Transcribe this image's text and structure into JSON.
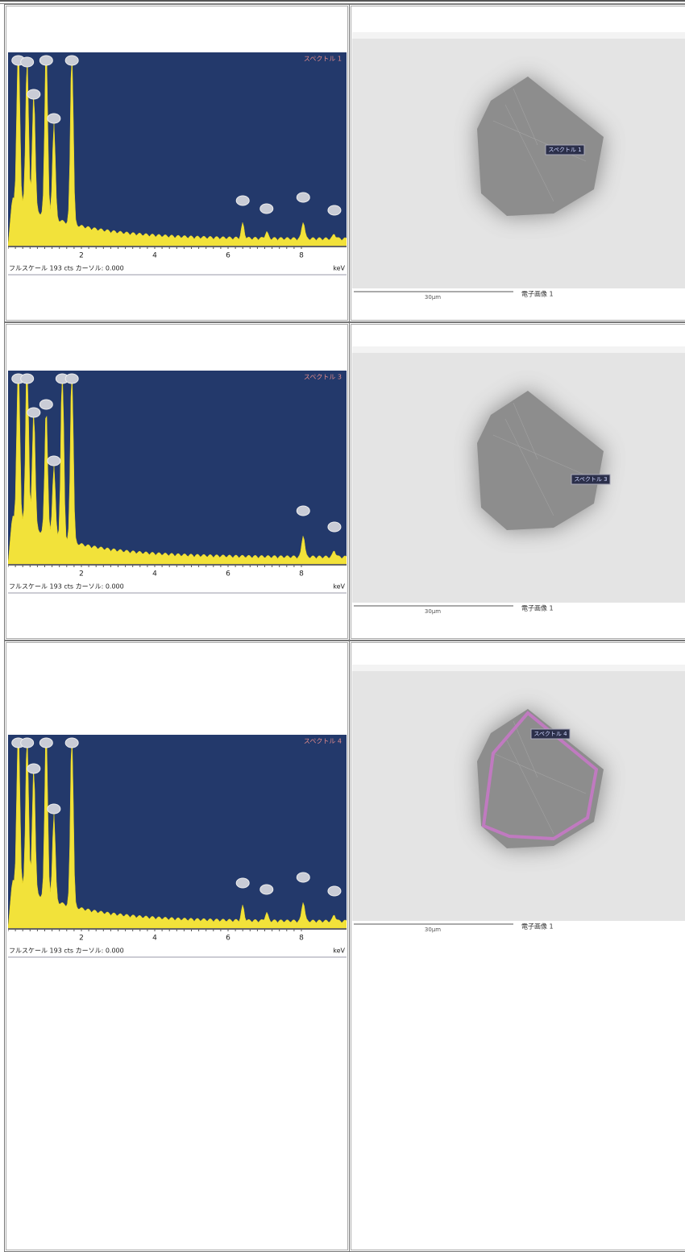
{
  "rows": [
    {
      "spectrum": {
        "title": "スペクトル 1",
        "ticks": [
          "2",
          "4",
          "6",
          "8"
        ],
        "footer": "フルスケール 193 cts カーソル: 0.000",
        "unit": "keV"
      },
      "image": {
        "marker": "スペクトル 1",
        "scale": "30μm",
        "caption": "電子画像 1"
      }
    },
    {
      "spectrum": {
        "title": "スペクトル 3",
        "ticks": [
          "2",
          "4",
          "6",
          "8"
        ],
        "footer": "フルスケール 193 cts カーソル: 0.000",
        "unit": "keV"
      },
      "image": {
        "marker": "スペクトル 3",
        "scale": "30μm",
        "caption": "電子画像 1"
      }
    },
    {
      "spectrum": {
        "title": "スペクトル 4",
        "ticks": [
          "2",
          "4",
          "6",
          "8"
        ],
        "footer": "フルスケール 193 cts カーソル: 0.000",
        "unit": "keV"
      },
      "image": {
        "marker": "スペクトル 4",
        "scale": "30μm",
        "caption": "電子画像 1"
      }
    }
  ]
}
